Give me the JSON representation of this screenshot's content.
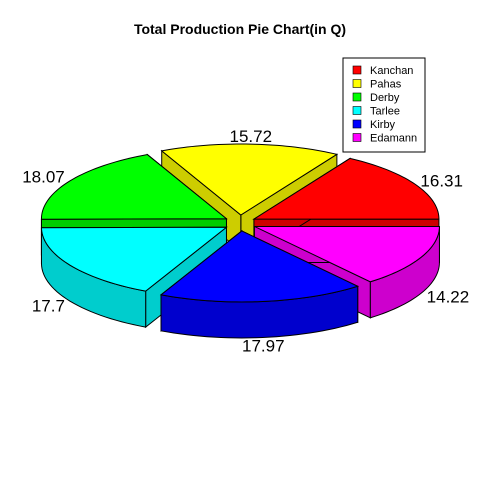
{
  "chart_data": {
    "type": "pie",
    "title": "Total Production Pie Chart(in Q)",
    "categories": [
      "Kanchan",
      "Pahas",
      "Derby",
      "Tarlee",
      "Kirby",
      "Edamann"
    ],
    "values": [
      16.31,
      15.72,
      18.07,
      17.7,
      17.97,
      14.22
    ],
    "value_labels": [
      "16.31",
      "15.72",
      "18.07",
      "17.7",
      "17.97",
      "14.22"
    ],
    "colors": [
      "#FF0000",
      "#FFFF00",
      "#00FF00",
      "#00FFFF",
      "#0000FF",
      "#FF00FF"
    ],
    "side_colors": [
      "#CD0000",
      "#CDCD00",
      "#00CD00",
      "#00CDCD",
      "#0000CD",
      "#CD00CD"
    ],
    "legend_position": "top-right",
    "style": "3d-exploded"
  }
}
